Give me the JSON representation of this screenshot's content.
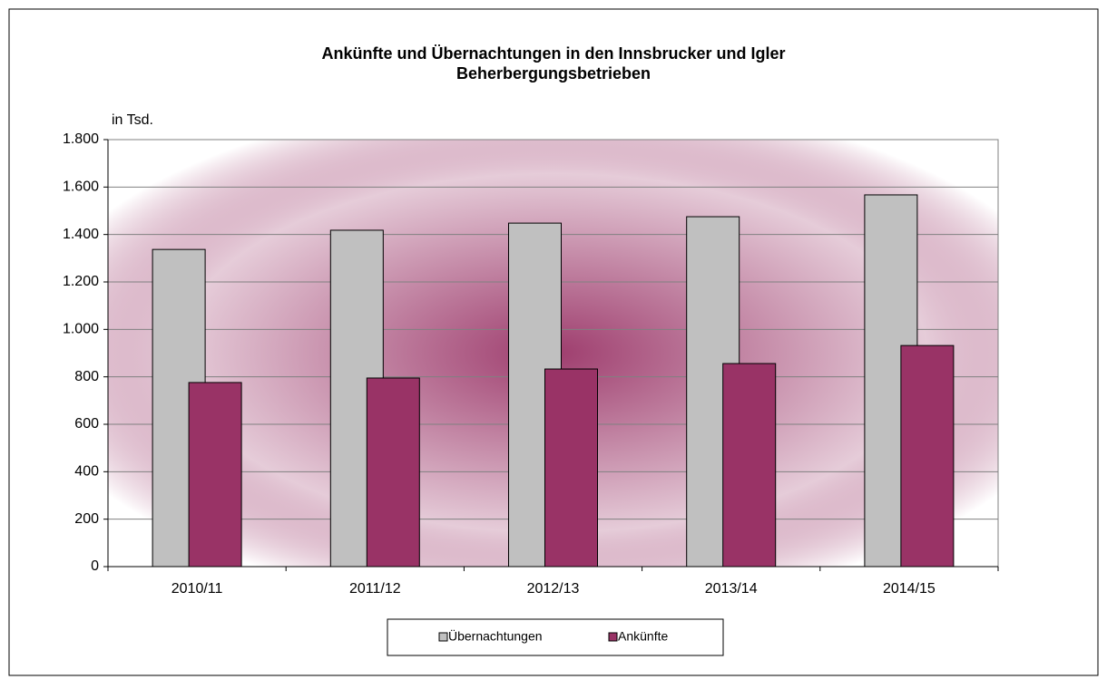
{
  "chart_data": {
    "type": "bar",
    "title": "Ankünfte und Übernachtungen in den Innsbrucker und Igler Beherbergungsbetrieben",
    "y_label": "in Tsd.",
    "categories": [
      "2010/11",
      "2011/12",
      "2012/13",
      "2013/14",
      "2014/15"
    ],
    "series": [
      {
        "name": "Übernachtungen",
        "color": "#c0c0c0",
        "values": [
          1337,
          1418,
          1448,
          1475,
          1567
        ]
      },
      {
        "name": "Ankünfte",
        "color": "#993366",
        "values": [
          776,
          795,
          833,
          856,
          932
        ]
      }
    ],
    "ylim": [
      0,
      1800
    ],
    "yticks": [
      0,
      200,
      400,
      600,
      800,
      {
        "value": 1000,
        "label": "1.000"
      },
      {
        "value": 1200,
        "label": "1.200"
      },
      {
        "value": 1400,
        "label": "1.400"
      },
      {
        "value": 1600,
        "label": "1.600"
      },
      {
        "value": 1800,
        "label": "1.800"
      }
    ],
    "grid": true,
    "legend": "bottom"
  }
}
